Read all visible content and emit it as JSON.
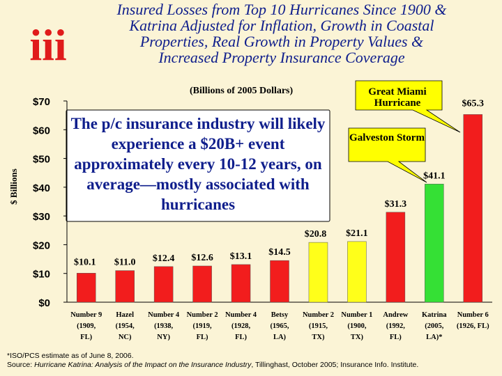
{
  "title_lines": [
    "Insured Losses from Top 10 Hurricanes Since 1900  &",
    "Katrina Adjusted for Inflation, Growth in Coastal",
    "Properties, Real Growth in Property Values &",
    "Increased Property Insurance Coverage"
  ],
  "logo": {
    "text": "iii",
    "color": "#e01b1b"
  },
  "unit_note": "(Billions of 2005 Dollars)",
  "annotation_box": "The p/c insurance industry will likely experience a $20B+ event approximately every 10-12 years, on average—mostly associated with hurricanes",
  "callouts": {
    "miami": "Great Miami Hurricane",
    "galveston": "Galveston Storm"
  },
  "footnote": {
    "line1": "*ISO/PCS estimate as of June 8, 2006.",
    "line2_prefix": "Source: ",
    "line2_italic": "Hurricane Katrina: Analysis of the Impact on the Insurance Industry",
    "line2_suffix": ", Tillinghast, October 2005; Insurance Info. Institute."
  },
  "colors": {
    "red": "#f21d1d",
    "yellow": "#ffff1a",
    "green": "#35e035",
    "callout_fill": "#ffff00",
    "axis_text": "#000000",
    "title": "#0f1e8c"
  },
  "chart_data": {
    "type": "bar",
    "title": "Insured Losses from Top 10 Hurricanes Since 1900 & Katrina Adjusted for Inflation, Growth in Coastal Properties, Real Growth in Property Values & Increased Property Insurance Coverage",
    "ylabel": "$ Billions",
    "ylim": [
      0,
      70
    ],
    "yticks": [
      0,
      10,
      20,
      30,
      40,
      50,
      60,
      70
    ],
    "ytick_labels": [
      "$0",
      "$10",
      "$20",
      "$30",
      "$40",
      "$50",
      "$60",
      "$70"
    ],
    "categories": [
      [
        "Number 9",
        "(1909,",
        "FL)"
      ],
      [
        "Hazel",
        "(1954,",
        "NC)"
      ],
      [
        "Number 4",
        "(1938,",
        "NY)"
      ],
      [
        "Number 2",
        "(1919,",
        "FL)"
      ],
      [
        "Number 4",
        "(1928,",
        "FL)"
      ],
      [
        "Betsy",
        "(1965,",
        "LA)"
      ],
      [
        "Number 2",
        "(1915,",
        "TX)"
      ],
      [
        "Number 1",
        "(1900,",
        "TX)"
      ],
      [
        "Andrew",
        "(1992,",
        "FL)"
      ],
      [
        "Katrina",
        "(2005,",
        "LA)*"
      ],
      [
        "Number 6",
        "(1926, FL)",
        ""
      ]
    ],
    "values": [
      10.1,
      11.0,
      12.4,
      12.6,
      13.1,
      14.5,
      20.8,
      21.1,
      31.3,
      41.1,
      65.3
    ],
    "value_labels": [
      "$10.1",
      "$11.0",
      "$12.4",
      "$12.6",
      "$13.1",
      "$14.5",
      "$20.8",
      "$21.1",
      "$31.3",
      "$41.1",
      "$65.3"
    ],
    "bar_colors": [
      "red",
      "red",
      "red",
      "red",
      "red",
      "red",
      "yellow",
      "yellow",
      "red",
      "green",
      "red"
    ],
    "grid": false
  }
}
